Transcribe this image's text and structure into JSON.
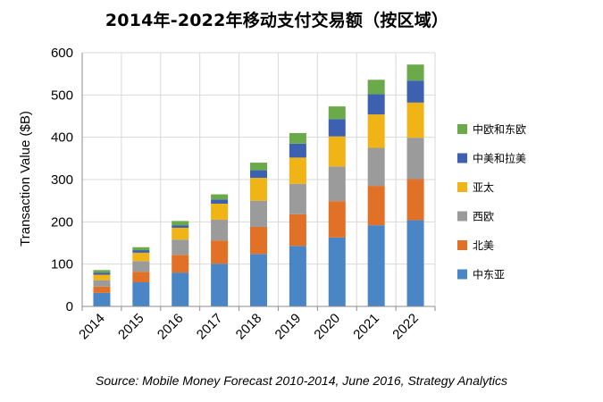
{
  "chart_data": {
    "type": "bar",
    "stacked": true,
    "title": "2014年-2022年移动支付交易额（按区域）",
    "ylabel": "Transaction Value ($B)",
    "xlabel": "",
    "ylim": [
      0,
      600
    ],
    "yticks": [
      0,
      100,
      200,
      300,
      400,
      500,
      600
    ],
    "grid": true,
    "legend_position": "right",
    "categories": [
      "2014",
      "2015",
      "2016",
      "2017",
      "2018",
      "2019",
      "2020",
      "2021",
      "2022"
    ],
    "series": [
      {
        "name": "中东亚",
        "color": "#4a86c5",
        "values": [
          32,
          57,
          80,
          101,
          124,
          143,
          163,
          192,
          204
        ]
      },
      {
        "name": "北美",
        "color": "#e07127",
        "values": [
          15,
          25,
          42,
          55,
          64,
          75,
          86,
          93,
          97
        ]
      },
      {
        "name": "西欧",
        "color": "#9b9b9b",
        "values": [
          15,
          25,
          36,
          49,
          62,
          72,
          82,
          90,
          98
        ]
      },
      {
        "name": "亚太",
        "color": "#f0b417",
        "values": [
          13,
          20,
          28,
          38,
          54,
          62,
          71,
          79,
          83
        ]
      },
      {
        "name": "中美和拉美",
        "color": "#3d61b0",
        "values": [
          5,
          6,
          6,
          10,
          18,
          33,
          41,
          48,
          52
        ]
      },
      {
        "name": "中欧和东欧",
        "color": "#6aaa4a",
        "values": [
          6,
          7,
          10,
          12,
          18,
          25,
          30,
          34,
          38
        ]
      }
    ]
  },
  "source": "Source: Mobile Money Forecast 2010-2014, June 2016, Strategy Analytics"
}
